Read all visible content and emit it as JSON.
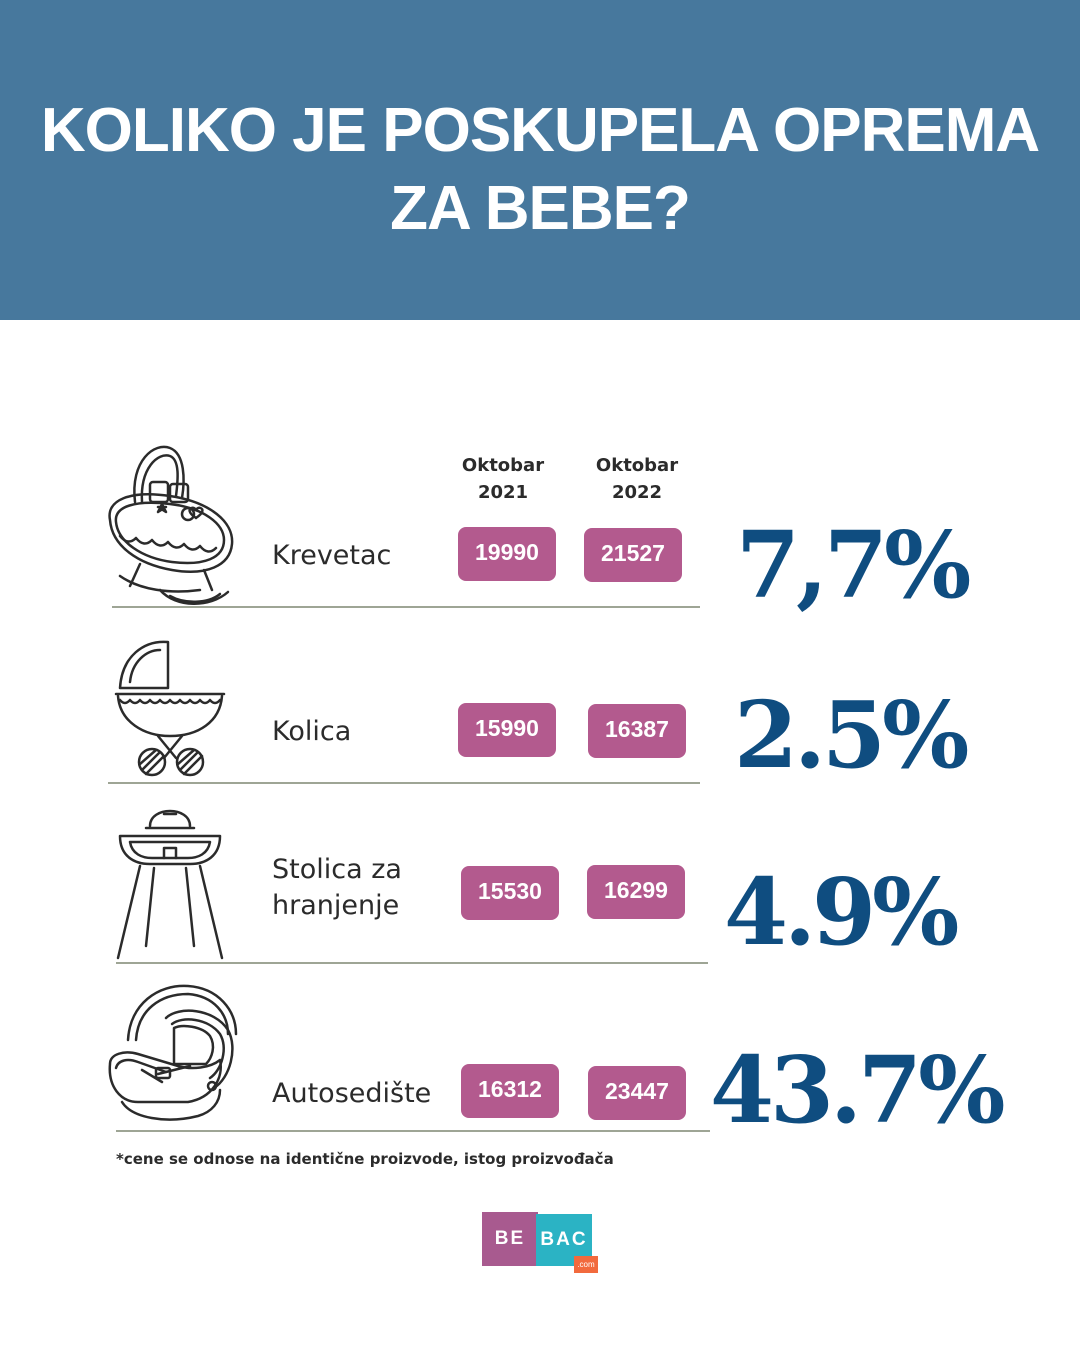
{
  "title_line1": "KOLIKO JE POSKUPELA OPREMA",
  "title_line2": "ZA BEBE?",
  "columns": {
    "c2021_line1": "Oktobar",
    "c2021_line2": "2021",
    "c2022_line1": "Oktobar",
    "c2022_line2": "2022"
  },
  "items": [
    {
      "name": "Krevetac",
      "price_2021": "19990",
      "price_2022": "21527",
      "increase": "7,7%",
      "icon": "crib-icon"
    },
    {
      "name": "Kolica",
      "price_2021": "15990",
      "price_2022": "16387",
      "increase": "2.5%",
      "icon": "stroller-icon"
    },
    {
      "name_line1": "Stolica za",
      "name_line2": "hranjenje",
      "price_2021": "15530",
      "price_2022": "16299",
      "increase": "4.9%",
      "icon": "high-chair-icon"
    },
    {
      "name": "Autosedište",
      "price_2021": "16312",
      "price_2022": "23447",
      "increase": "43.7%",
      "icon": "car-seat-icon"
    }
  ],
  "footnote": "*cene se odnose na identične proizvode, istog proizvođača",
  "logo": {
    "part1": "BE",
    "part2": "BAC",
    "part3": ".com"
  },
  "colors": {
    "header": "#47789d",
    "price_badge": "#b35a8e",
    "percent": "#0f4d80",
    "divider": "#9ea595"
  }
}
